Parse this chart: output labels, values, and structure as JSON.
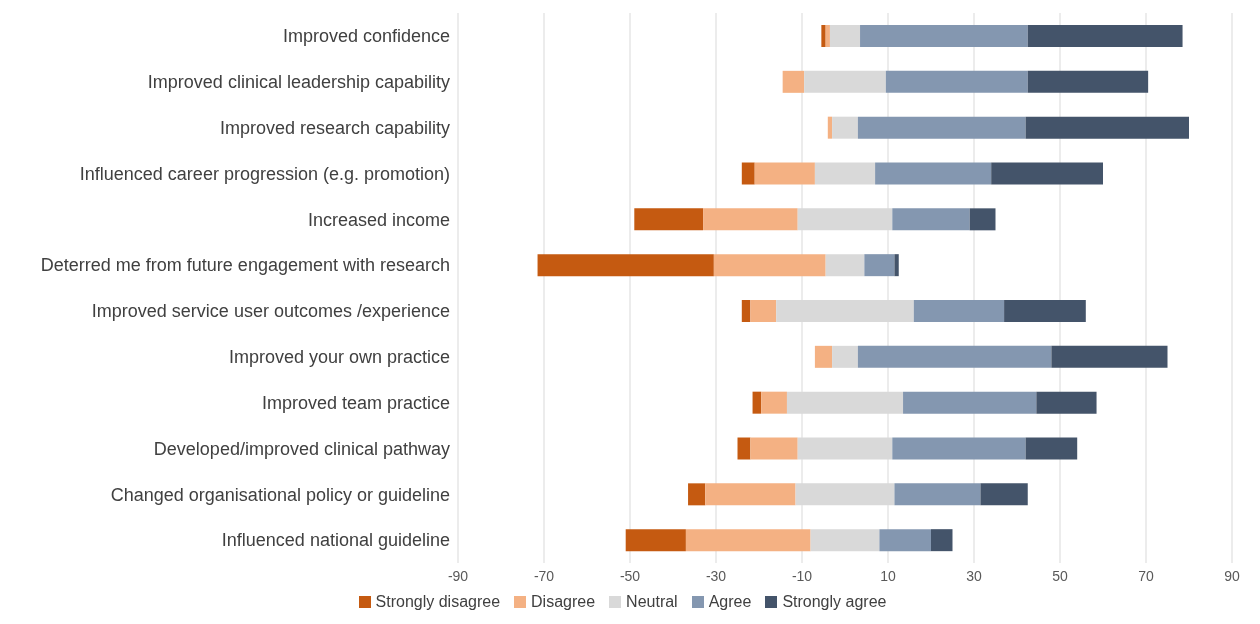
{
  "chart_data": {
    "type": "bar",
    "orientation": "horizontal",
    "categories": [
      "Improved confidence",
      "Improved clinical leadership capability",
      "Improved research capability",
      "Influenced career progression (e.g. promotion)",
      "Increased income",
      "Deterred me from future engagement with research",
      "Improved service user outcomes /experience",
      "Improved your own practice",
      "Improved team practice",
      "Developed/improved clinical pathway",
      "Changed organisational policy or guideline",
      "Influenced national guideline"
    ],
    "series": [
      {
        "name": "Strongly disagree",
        "color": "#c55a11",
        "values": [
          1,
          null,
          null,
          3,
          16,
          41,
          2,
          null,
          2,
          3,
          4,
          14
        ],
        "base": [
          -5.5,
          null,
          null,
          -24,
          -49,
          -71.5,
          -24,
          null,
          -21.5,
          -25,
          -36.5,
          -51
        ]
      },
      {
        "name": "Disagree",
        "color": "#f4b183",
        "values": [
          1,
          5,
          1,
          14,
          22,
          26,
          6,
          4,
          6,
          11,
          21,
          29
        ],
        "base": [
          -4.5,
          -14.5,
          -4,
          -21,
          -33,
          -30.5,
          -22,
          -7,
          -19.5,
          -22,
          -32.5,
          -37
        ]
      },
      {
        "name": "Neutral",
        "color": "#d9d9d9",
        "values": [
          7,
          19,
          6,
          14,
          22,
          9,
          32,
          6,
          27,
          22,
          23,
          16
        ],
        "base": [
          -3.5,
          -9.5,
          -3,
          -7,
          -11,
          -4.5,
          -16,
          -3,
          -13.5,
          -11,
          -11.5,
          -8
        ]
      },
      {
        "name": "Agree",
        "color": "#8497b0",
        "values": [
          39,
          33,
          39,
          27,
          18,
          7,
          21,
          45,
          31,
          31,
          20,
          12
        ],
        "base": [
          3.5,
          9.5,
          3,
          7,
          11,
          4.5,
          16,
          3,
          13.5,
          11,
          11.5,
          8
        ]
      },
      {
        "name": "Strongly agree",
        "color": "#44546a",
        "values": [
          36,
          28,
          38,
          26,
          6,
          1,
          19,
          27,
          14,
          12,
          11,
          5
        ],
        "base": [
          42.5,
          42.5,
          42,
          34,
          29,
          11.5,
          37,
          48,
          44.5,
          42,
          31.5,
          20
        ]
      }
    ],
    "xlim": [
      -90,
      90
    ],
    "xticks": [
      -90,
      -70,
      -50,
      -30,
      -10,
      10,
      30,
      50,
      70,
      90
    ],
    "grid": "x",
    "legend": "bottom"
  }
}
